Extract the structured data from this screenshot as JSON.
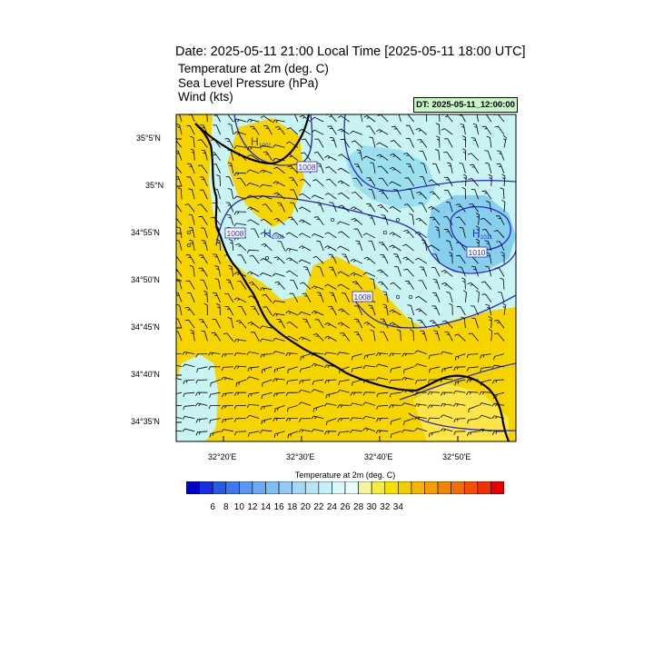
{
  "header": {
    "title": "Date: 2025-05-11  21:00 Local Time [2025-05-11  18:00 UTC]",
    "line1": "Temperature at 2m   (deg. C)",
    "line2": "Sea Level Pressure   (hPa)",
    "line3": "Wind   (kts)",
    "dt_badge": "DT: 2025-05-11_12:00:00"
  },
  "map": {
    "lat_labels": [
      "35°5'N",
      "35°N",
      "34°55'N",
      "34°50'N",
      "34°45'N",
      "34°40'N",
      "34°35'N"
    ],
    "lon_labels": [
      "32°20'E",
      "32°30'E",
      "32°40'E",
      "32°50'E"
    ],
    "colors": {
      "warm": "#f5d400",
      "warm_light": "#fff07a",
      "cool": "#c8f4f4",
      "cool2": "#9ce0f0",
      "cool3": "#86cfee",
      "isobar": "#2828cc",
      "coast": "#000000"
    },
    "isobar_labels": [
      "1008",
      "1008",
      "1008",
      "1010"
    ],
    "pressure_centers": [
      {
        "letter": "H",
        "value": "1002"
      },
      {
        "letter": "H",
        "value": "1008"
      },
      {
        "letter": "H",
        "value": "1011"
      }
    ]
  },
  "colorbar": {
    "title": "Temperature at 2m  (deg. C)",
    "ticks": [
      "6",
      "8",
      "10",
      "12",
      "14",
      "16",
      "18",
      "20",
      "22",
      "24",
      "26",
      "28",
      "30",
      "32",
      "34"
    ],
    "colors": [
      "#0000cc",
      "#1530e0",
      "#2a5ae8",
      "#3c78f0",
      "#5a96f2",
      "#6eaaf4",
      "#80bcf4",
      "#94caf4",
      "#a6d8f6",
      "#b4e6f6",
      "#c4f0f6",
      "#d6f8f8",
      "#e8fcfc",
      "#f5f5a0",
      "#f5ec40",
      "#f5e000",
      "#f5cc00",
      "#f5b400",
      "#f59c00",
      "#f58400",
      "#f56c00",
      "#f55000",
      "#f03000",
      "#e80000"
    ]
  }
}
